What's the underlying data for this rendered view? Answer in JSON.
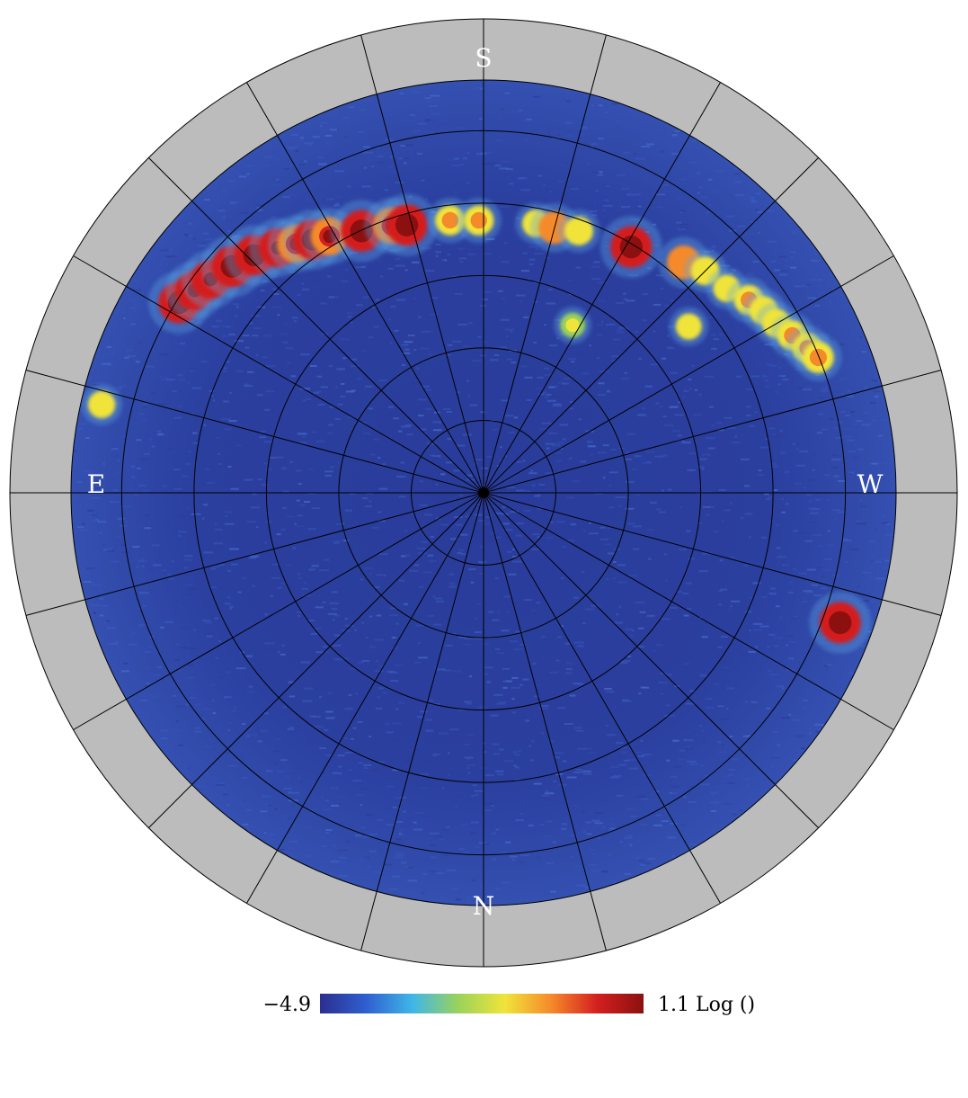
{
  "chart_data": {
    "type": "heatmap",
    "projection": "polar all-sky",
    "title": "",
    "directions": {
      "top": "S",
      "bottom": "N",
      "left": "E",
      "right": "W"
    },
    "azimuth_spokes": 24,
    "altitude_rings": 5,
    "grid": true,
    "colorbar": {
      "min_label": "−4.9",
      "max_label": "1.1 Log ()",
      "colors": [
        "#2b2f8f",
        "#2f5fd0",
        "#3fb6e8",
        "#9ad35a",
        "#f0e43a",
        "#f58a2a",
        "#d41f1f",
        "#8c1010"
      ]
    },
    "background_color": "#2b3f9f",
    "mask_color": "#bcbcbc",
    "sources": [
      {
        "az": -58,
        "r": 0.87,
        "intensity": 1.0
      },
      {
        "az": -55,
        "r": 0.855,
        "intensity": 0.9
      },
      {
        "az": -52,
        "r": 0.84,
        "intensity": 0.9
      },
      {
        "az": -48,
        "r": 0.82,
        "intensity": 1.0
      },
      {
        "az": -44,
        "r": 0.8,
        "intensity": 0.95
      },
      {
        "az": -40,
        "r": 0.775,
        "intensity": 0.9
      },
      {
        "az": -37,
        "r": 0.755,
        "intensity": 0.85
      },
      {
        "az": -34,
        "r": 0.74,
        "intensity": 0.95
      },
      {
        "az": -31,
        "r": 0.725,
        "intensity": 0.85
      },
      {
        "az": -25,
        "r": 0.7,
        "intensity": 1.0
      },
      {
        "az": -19,
        "r": 0.685,
        "intensity": 0.8
      },
      {
        "az": -16,
        "r": 0.675,
        "intensity": 1.0
      },
      {
        "az": -7,
        "r": 0.665,
        "intensity": 0.55
      },
      {
        "az": -1,
        "r": 0.66,
        "intensity": 0.55
      },
      {
        "az": 11,
        "r": 0.665,
        "intensity": 0.45
      },
      {
        "az": 15,
        "r": 0.665,
        "intensity": 0.65
      },
      {
        "az": 20,
        "r": 0.675,
        "intensity": 0.5
      },
      {
        "az": 31,
        "r": 0.695,
        "intensity": 1.0
      },
      {
        "az": 41,
        "r": 0.74,
        "intensity": 0.7
      },
      {
        "az": 45,
        "r": 0.76,
        "intensity": 0.5
      },
      {
        "az": 50,
        "r": 0.77,
        "intensity": 0.45
      },
      {
        "az": 54,
        "r": 0.795,
        "intensity": 0.55
      },
      {
        "az": 57,
        "r": 0.81,
        "intensity": 0.5
      },
      {
        "az": 60,
        "r": 0.82,
        "intensity": 0.5
      },
      {
        "az": 63,
        "r": 0.84,
        "intensity": 0.55
      },
      {
        "az": 66,
        "r": 0.86,
        "intensity": 0.55
      },
      {
        "az": 68,
        "r": 0.875,
        "intensity": 0.6
      },
      {
        "az": 51,
        "r": 0.64,
        "intensity": 0.4
      },
      {
        "az": 28,
        "r": 0.46,
        "intensity": 0.35
      },
      {
        "az": 110,
        "r": 0.92,
        "intensity": 1.0
      },
      {
        "az": -77,
        "r": 0.95,
        "intensity": 0.45
      }
    ]
  }
}
